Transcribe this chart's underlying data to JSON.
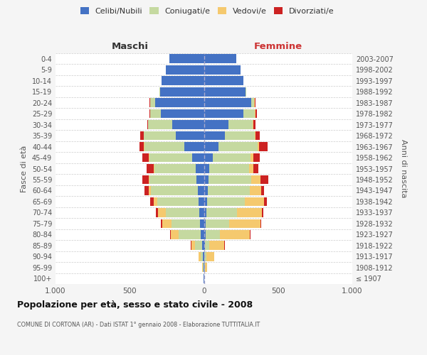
{
  "age_groups": [
    "100+",
    "95-99",
    "90-94",
    "85-89",
    "80-84",
    "75-79",
    "70-74",
    "65-69",
    "60-64",
    "55-59",
    "50-54",
    "45-49",
    "40-44",
    "35-39",
    "30-34",
    "25-29",
    "20-24",
    "15-19",
    "10-14",
    "5-9",
    "0-4"
  ],
  "birth_years": [
    "≤ 1907",
    "1908-1912",
    "1913-1917",
    "1918-1922",
    "1923-1927",
    "1928-1932",
    "1933-1937",
    "1938-1942",
    "1943-1947",
    "1948-1952",
    "1953-1957",
    "1958-1962",
    "1963-1967",
    "1968-1972",
    "1973-1977",
    "1978-1982",
    "1983-1987",
    "1988-1992",
    "1993-1997",
    "1998-2002",
    "2003-2007"
  ],
  "male_celibi": [
    2,
    3,
    5,
    10,
    20,
    25,
    30,
    35,
    40,
    50,
    55,
    80,
    130,
    190,
    215,
    290,
    330,
    295,
    285,
    255,
    235
  ],
  "male_coniugati": [
    0,
    5,
    18,
    50,
    150,
    195,
    225,
    280,
    315,
    315,
    280,
    285,
    270,
    215,
    160,
    70,
    30,
    5,
    2,
    0,
    0
  ],
  "male_vedovi": [
    0,
    5,
    15,
    25,
    55,
    60,
    55,
    25,
    15,
    5,
    5,
    5,
    5,
    2,
    0,
    0,
    0,
    0,
    0,
    0,
    0
  ],
  "male_divorziati": [
    0,
    0,
    0,
    5,
    5,
    10,
    15,
    20,
    30,
    45,
    45,
    45,
    30,
    20,
    5,
    5,
    5,
    0,
    0,
    0,
    0
  ],
  "female_celibi": [
    1,
    2,
    3,
    5,
    10,
    10,
    15,
    20,
    25,
    30,
    35,
    60,
    100,
    140,
    165,
    265,
    320,
    280,
    265,
    245,
    220
  ],
  "female_coniugati": [
    0,
    5,
    15,
    30,
    100,
    160,
    210,
    255,
    285,
    290,
    270,
    255,
    260,
    205,
    165,
    80,
    20,
    5,
    2,
    0,
    0
  ],
  "female_vedovi": [
    2,
    15,
    50,
    100,
    200,
    210,
    165,
    130,
    75,
    60,
    30,
    20,
    10,
    5,
    5,
    5,
    5,
    0,
    0,
    0,
    0
  ],
  "female_divorziati": [
    0,
    0,
    0,
    5,
    5,
    5,
    10,
    20,
    20,
    55,
    30,
    40,
    60,
    25,
    15,
    5,
    5,
    0,
    0,
    0,
    0
  ],
  "color_celibi": "#4472c4",
  "color_coniugati": "#c5d9a0",
  "color_vedovi": "#f5c96e",
  "color_divorziati": "#cc2222",
  "xlim": 1000,
  "title": "Popolazione per età, sesso e stato civile - 2008",
  "subtitle": "COMUNE DI CORTONA (AR) - Dati ISTAT 1° gennaio 2008 - Elaborazione TUTTITALIA.IT",
  "ylabel_left": "Fasce di età",
  "ylabel_right": "Anni di nascita",
  "xlabel_left": "Maschi",
  "xlabel_right": "Femmine",
  "bg_color": "#f5f5f5",
  "plot_bg_color": "#ffffff"
}
